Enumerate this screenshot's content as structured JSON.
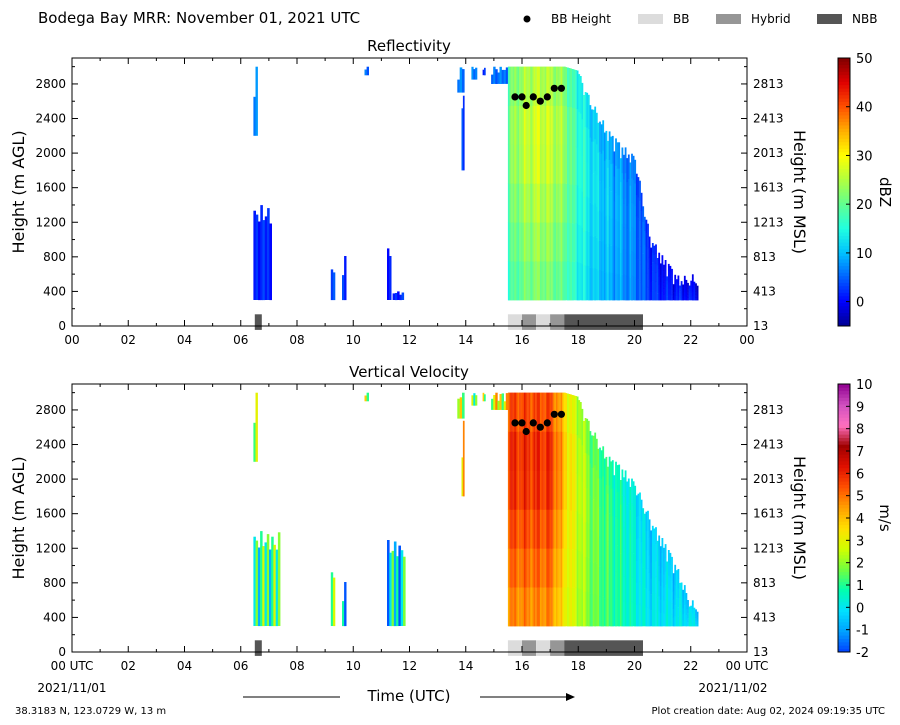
{
  "header": {
    "title": "Bodega Bay MRR:  November 01, 2021 UTC",
    "legend": [
      {
        "label": "BB Height",
        "color": "#000000",
        "marker": "dot"
      },
      {
        "label": "BB",
        "color": "#dcdcdc",
        "marker": "box"
      },
      {
        "label": "Hybrid",
        "color": "#969696",
        "marker": "box"
      },
      {
        "label": "NBB",
        "color": "#555555",
        "marker": "box"
      }
    ]
  },
  "footer": {
    "location": "38.3183 N, 123.0729 W, 13 m",
    "created": "Plot creation date: Aug 02, 2024 09:19:35 UTC",
    "x_label": "Time (UTC)",
    "start_date": "2021/11/01",
    "end_date": "2021/11/02"
  },
  "chart_data": [
    {
      "type": "heatmap",
      "title": "Reflectivity",
      "xlabel": "",
      "ylabel": "Height (m AGL)",
      "ylabel_right": "Height (m MSL)",
      "colorbar_label": "dBZ",
      "xlim": [
        0,
        24
      ],
      "ylim": [
        0,
        3100
      ],
      "x_ticks": [
        "00",
        "02",
        "04",
        "06",
        "08",
        "10",
        "12",
        "14",
        "16",
        "18",
        "20",
        "22",
        "00"
      ],
      "y_ticks": [
        0,
        400,
        800,
        1200,
        1600,
        2000,
        2400,
        2800
      ],
      "y_ticks_right": [
        "13",
        "413",
        "813",
        "1213",
        "1613",
        "2013",
        "2413",
        "2813"
      ],
      "colorbar_range": [
        -5,
        50
      ],
      "colorbar_ticks": [
        "0",
        "10",
        "20",
        "30",
        "40",
        "50"
      ],
      "colorbar_tick_values": [
        0,
        10,
        20,
        30,
        40,
        50
      ],
      "colormap": [
        "#00008f",
        "#0000ff",
        "#0060ff",
        "#00c0ff",
        "#20ffe0",
        "#60ff90",
        "#b0ff40",
        "#ffff00",
        "#ffb000",
        "#ff5000",
        "#e00000",
        "#800000"
      ],
      "bb_height": {
        "x": [
          15.75,
          16.0,
          16.15,
          16.4,
          16.65,
          16.9,
          17.15,
          17.4
        ],
        "y": [
          2650,
          2650,
          2550,
          2650,
          2600,
          2650,
          2750,
          2750
        ]
      },
      "bb_type_bar": [
        {
          "start": 6.5,
          "end": 6.75,
          "type": "NBB"
        },
        {
          "start": 15.5,
          "end": 16.0,
          "type": "BB"
        },
        {
          "start": 16.0,
          "end": 16.5,
          "type": "Hybrid"
        },
        {
          "start": 16.5,
          "end": 17.0,
          "type": "BB"
        },
        {
          "start": 17.0,
          "end": 17.5,
          "type": "Hybrid"
        },
        {
          "start": 17.5,
          "end": 20.3,
          "type": "NBB"
        }
      ],
      "echoes": [
        {
          "x0": 6.45,
          "x1": 6.6,
          "y0": 2200,
          "y1": 3000,
          "value": 8
        },
        {
          "x0": 6.45,
          "x1": 7.1,
          "y0": 300,
          "y1": 1400,
          "value": 2
        },
        {
          "x0": 9.2,
          "x1": 9.35,
          "y0": 300,
          "y1": 700,
          "value": 3
        },
        {
          "x0": 9.6,
          "x1": 9.75,
          "y0": 300,
          "y1": 850,
          "value": 3
        },
        {
          "x0": 10.4,
          "x1": 10.55,
          "y0": 2900,
          "y1": 3000,
          "value": 5
        },
        {
          "x0": 11.2,
          "x1": 11.35,
          "y0": 300,
          "y1": 900,
          "value": 2
        },
        {
          "x0": 11.4,
          "x1": 11.8,
          "y0": 300,
          "y1": 400,
          "value": 2
        },
        {
          "x0": 13.7,
          "x1": 13.95,
          "y0": 2700,
          "y1": 3000,
          "value": 6
        },
        {
          "x0": 13.85,
          "x1": 13.95,
          "y0": 1800,
          "y1": 2700,
          "value": 4
        },
        {
          "x0": 14.2,
          "x1": 14.4,
          "y0": 2850,
          "y1": 3000,
          "value": 6
        },
        {
          "x0": 14.6,
          "x1": 14.7,
          "y0": 2900,
          "y1": 3000,
          "value": 3
        },
        {
          "x0": 14.9,
          "x1": 15.5,
          "y0": 2800,
          "y1": 3000,
          "value": 6
        }
      ],
      "main_echo": {
        "x": [
          15.5,
          16.0,
          16.5,
          17.0,
          17.5,
          18.0,
          18.5,
          19.0,
          19.5,
          20.0,
          20.5,
          21.0,
          21.5,
          22.0,
          22.25
        ],
        "top": [
          3000,
          3000,
          3000,
          3000,
          3000,
          2950,
          2600,
          2300,
          2100,
          2000,
          1100,
          800,
          600,
          600,
          600
        ],
        "value": [
          22,
          26,
          28,
          27,
          24,
          18,
          14,
          12,
          10,
          8,
          4,
          2,
          2,
          1,
          1
        ]
      }
    },
    {
      "type": "heatmap",
      "title": "Vertical Velocity",
      "xlabel": "Time (UTC)",
      "ylabel": "Height (m AGL)",
      "ylabel_right": "Height (m MSL)",
      "colorbar_label": "m/s",
      "xlim": [
        0,
        24
      ],
      "ylim": [
        0,
        3100
      ],
      "x_ticks": [
        "00 UTC",
        "02",
        "04",
        "06",
        "08",
        "10",
        "12",
        "14",
        "16",
        "18",
        "20",
        "22",
        "00 UTC"
      ],
      "y_ticks": [
        0,
        400,
        800,
        1200,
        1600,
        2000,
        2400,
        2800
      ],
      "y_ticks_right": [
        "13",
        "413",
        "813",
        "1213",
        "1613",
        "2013",
        "2413",
        "2813"
      ],
      "colorbar_range": [
        -2,
        10
      ],
      "colorbar_ticks": [
        "-2",
        "-1",
        "0",
        "1",
        "2",
        "3",
        "4",
        "5",
        "6",
        "7",
        "8",
        "9",
        "10"
      ],
      "colorbar_tick_values": [
        -2,
        -1,
        0,
        1,
        2,
        3,
        4,
        5,
        6,
        7,
        8,
        9,
        10
      ],
      "colormap": [
        "#0040ff",
        "#00a0ff",
        "#00e0ff",
        "#00ffb0",
        "#70ff40",
        "#d0ff00",
        "#ffe000",
        "#ffa000",
        "#ff5000",
        "#e01000",
        "#a00000",
        "#ff70c0",
        "#d050c0",
        "#900090"
      ],
      "bb_height": {
        "x": [
          15.75,
          16.0,
          16.15,
          16.4,
          16.65,
          16.9,
          17.15,
          17.4
        ],
        "y": [
          2650,
          2650,
          2550,
          2650,
          2600,
          2650,
          2750,
          2750
        ]
      },
      "bb_type_bar": [
        {
          "start": 6.5,
          "end": 6.75,
          "type": "NBB"
        },
        {
          "start": 15.5,
          "end": 16.0,
          "type": "BB"
        },
        {
          "start": 16.0,
          "end": 16.5,
          "type": "Hybrid"
        },
        {
          "start": 16.5,
          "end": 17.0,
          "type": "BB"
        },
        {
          "start": 17.0,
          "end": 17.5,
          "type": "Hybrid"
        },
        {
          "start": 17.5,
          "end": 20.3,
          "type": "NBB"
        }
      ],
      "echoes": [
        {
          "x0": 6.45,
          "x1": 6.6,
          "y0": 2200,
          "y1": 3000,
          "value": 3
        },
        {
          "x0": 6.45,
          "x1": 7.4,
          "y0": 300,
          "y1": 1400,
          "value": 1
        },
        {
          "x0": 9.2,
          "x1": 9.35,
          "y0": 300,
          "y1": 1000,
          "value": 1
        },
        {
          "x0": 9.6,
          "x1": 9.75,
          "y0": 300,
          "y1": 850,
          "value": 0
        },
        {
          "x0": 10.4,
          "x1": 10.55,
          "y0": 2900,
          "y1": 3000,
          "value": 2
        },
        {
          "x0": 11.2,
          "x1": 11.85,
          "y0": 300,
          "y1": 1300,
          "value": 0
        },
        {
          "x0": 13.7,
          "x1": 13.95,
          "y0": 2700,
          "y1": 3000,
          "value": 3
        },
        {
          "x0": 13.85,
          "x1": 13.95,
          "y0": 1800,
          "y1": 2700,
          "value": 3
        },
        {
          "x0": 14.2,
          "x1": 14.4,
          "y0": 2850,
          "y1": 3000,
          "value": 2
        },
        {
          "x0": 14.6,
          "x1": 14.7,
          "y0": 2900,
          "y1": 3000,
          "value": 2
        },
        {
          "x0": 14.9,
          "x1": 15.5,
          "y0": 2800,
          "y1": 3000,
          "value": 3
        }
      ],
      "main_echo": {
        "x": [
          15.5,
          16.0,
          16.5,
          17.0,
          17.5,
          18.0,
          18.5,
          19.0,
          19.5,
          20.0,
          20.5,
          21.0,
          21.5,
          22.0,
          22.25
        ],
        "top": [
          3000,
          3000,
          3000,
          3000,
          3000,
          2950,
          2600,
          2300,
          2150,
          2000,
          1600,
          1300,
          1000,
          600,
          600
        ],
        "value": [
          6,
          6,
          6,
          6,
          4,
          3,
          2,
          1.5,
          1,
          0.5,
          0,
          0,
          0,
          0,
          0
        ]
      }
    }
  ]
}
